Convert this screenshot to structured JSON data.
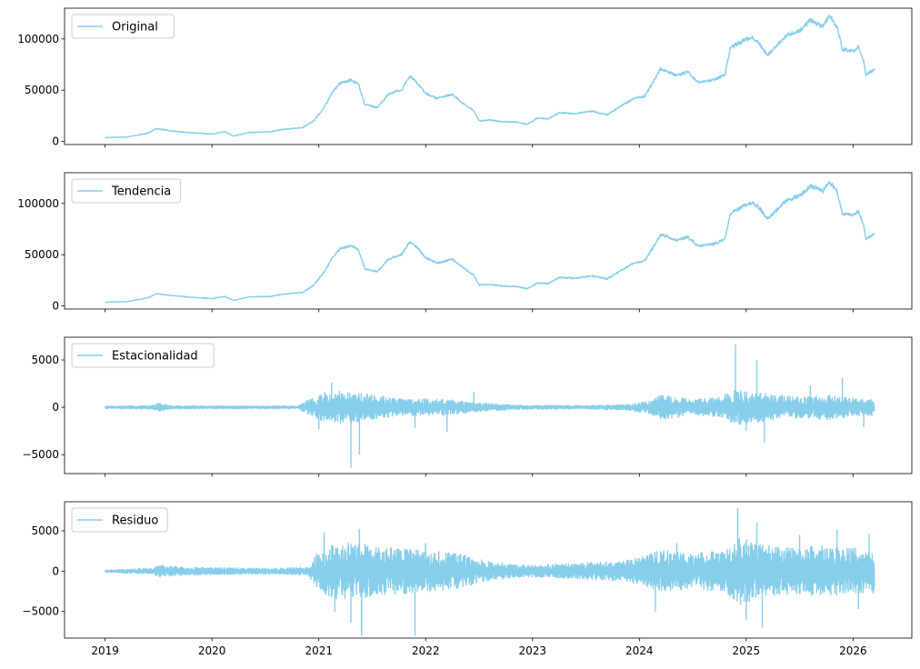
{
  "chart_data": {
    "type": "line",
    "series_color": "#87ceeb",
    "x_range": [
      2018.62,
      2026.55
    ],
    "x_ticks": [
      2019,
      2020,
      2021,
      2022,
      2023,
      2024,
      2025,
      2026
    ],
    "x_tick_labels": [
      "2019",
      "2020",
      "2021",
      "2022",
      "2023",
      "2024",
      "2025",
      "2026"
    ],
    "panels": [
      {
        "key": "original",
        "legend": "Original",
        "kind": "price",
        "ylim": [
          -3000,
          130000
        ],
        "y_ticks": [
          0,
          50000,
          100000
        ],
        "y_tick_labels": [
          "0",
          "50000",
          "100000"
        ],
        "points": [
          [
            2019.0,
            3700
          ],
          [
            2019.2,
            4200
          ],
          [
            2019.4,
            8000
          ],
          [
            2019.48,
            12500
          ],
          [
            2019.6,
            10500
          ],
          [
            2019.8,
            8500
          ],
          [
            2020.0,
            7200
          ],
          [
            2020.12,
            9500
          ],
          [
            2020.2,
            5200
          ],
          [
            2020.35,
            8800
          ],
          [
            2020.55,
            9500
          ],
          [
            2020.65,
            11500
          ],
          [
            2020.85,
            13500
          ],
          [
            2020.95,
            20000
          ],
          [
            2021.05,
            33000
          ],
          [
            2021.12,
            47000
          ],
          [
            2021.2,
            57000
          ],
          [
            2021.3,
            60000
          ],
          [
            2021.37,
            56000
          ],
          [
            2021.43,
            36000
          ],
          [
            2021.55,
            33000
          ],
          [
            2021.65,
            46000
          ],
          [
            2021.78,
            51000
          ],
          [
            2021.85,
            64000
          ],
          [
            2021.92,
            57000
          ],
          [
            2022.0,
            47000
          ],
          [
            2022.1,
            42000
          ],
          [
            2022.25,
            46000
          ],
          [
            2022.35,
            37000
          ],
          [
            2022.45,
            30000
          ],
          [
            2022.5,
            20000
          ],
          [
            2022.6,
            21000
          ],
          [
            2022.7,
            19500
          ],
          [
            2022.85,
            19000
          ],
          [
            2022.95,
            16600
          ],
          [
            2023.05,
            23000
          ],
          [
            2023.15,
            22000
          ],
          [
            2023.25,
            28000
          ],
          [
            2023.4,
            27000
          ],
          [
            2023.55,
            29500
          ],
          [
            2023.7,
            26000
          ],
          [
            2023.82,
            34000
          ],
          [
            2023.95,
            42000
          ],
          [
            2024.05,
            44000
          ],
          [
            2024.15,
            62000
          ],
          [
            2024.2,
            71000
          ],
          [
            2024.35,
            64000
          ],
          [
            2024.45,
            68000
          ],
          [
            2024.55,
            58000
          ],
          [
            2024.7,
            60000
          ],
          [
            2024.8,
            65000
          ],
          [
            2024.85,
            91000
          ],
          [
            2024.95,
            97000
          ],
          [
            2025.05,
            102000
          ],
          [
            2025.12,
            96000
          ],
          [
            2025.2,
            84000
          ],
          [
            2025.28,
            93000
          ],
          [
            2025.38,
            104000
          ],
          [
            2025.5,
            108000
          ],
          [
            2025.6,
            118000
          ],
          [
            2025.72,
            112000
          ],
          [
            2025.78,
            123000
          ],
          [
            2025.85,
            112000
          ],
          [
            2025.9,
            90000
          ],
          [
            2026.0,
            88000
          ],
          [
            2026.05,
            93000
          ],
          [
            2026.1,
            78000
          ],
          [
            2026.12,
            65000
          ],
          [
            2026.2,
            70000
          ]
        ]
      },
      {
        "key": "trend",
        "legend": "Tendencia",
        "kind": "price",
        "ylim": [
          -3000,
          130000
        ],
        "y_ticks": [
          0,
          50000,
          100000
        ],
        "y_tick_labels": [
          "0",
          "50000",
          "100000"
        ],
        "points": [
          [
            2019.0,
            3700
          ],
          [
            2019.2,
            4200
          ],
          [
            2019.4,
            8000
          ],
          [
            2019.48,
            12000
          ],
          [
            2019.6,
            10500
          ],
          [
            2019.8,
            8500
          ],
          [
            2020.0,
            7200
          ],
          [
            2020.12,
            9300
          ],
          [
            2020.2,
            5500
          ],
          [
            2020.35,
            8800
          ],
          [
            2020.55,
            9400
          ],
          [
            2020.65,
            11300
          ],
          [
            2020.85,
            13300
          ],
          [
            2020.95,
            20000
          ],
          [
            2021.05,
            33000
          ],
          [
            2021.12,
            46000
          ],
          [
            2021.2,
            56000
          ],
          [
            2021.3,
            59000
          ],
          [
            2021.37,
            55000
          ],
          [
            2021.43,
            36500
          ],
          [
            2021.55,
            33500
          ],
          [
            2021.65,
            45500
          ],
          [
            2021.78,
            50500
          ],
          [
            2021.85,
            63000
          ],
          [
            2021.92,
            57000
          ],
          [
            2022.0,
            47000
          ],
          [
            2022.1,
            42000
          ],
          [
            2022.25,
            45500
          ],
          [
            2022.35,
            37500
          ],
          [
            2022.45,
            30000
          ],
          [
            2022.5,
            20500
          ],
          [
            2022.6,
            21000
          ],
          [
            2022.7,
            19500
          ],
          [
            2022.85,
            19000
          ],
          [
            2022.95,
            16800
          ],
          [
            2023.05,
            22500
          ],
          [
            2023.15,
            22000
          ],
          [
            2023.25,
            28000
          ],
          [
            2023.4,
            27000
          ],
          [
            2023.55,
            29500
          ],
          [
            2023.7,
            26500
          ],
          [
            2023.82,
            34000
          ],
          [
            2023.95,
            42000
          ],
          [
            2024.05,
            44000
          ],
          [
            2024.15,
            61000
          ],
          [
            2024.2,
            70000
          ],
          [
            2024.35,
            64000
          ],
          [
            2024.45,
            67500
          ],
          [
            2024.55,
            58500
          ],
          [
            2024.7,
            60500
          ],
          [
            2024.8,
            65000
          ],
          [
            2024.85,
            90000
          ],
          [
            2024.95,
            96000
          ],
          [
            2025.05,
            101000
          ],
          [
            2025.12,
            96000
          ],
          [
            2025.2,
            85000
          ],
          [
            2025.28,
            93000
          ],
          [
            2025.38,
            103000
          ],
          [
            2025.5,
            107500
          ],
          [
            2025.6,
            117000
          ],
          [
            2025.72,
            112000
          ],
          [
            2025.78,
            121000
          ],
          [
            2025.85,
            112000
          ],
          [
            2025.9,
            90500
          ],
          [
            2026.0,
            88500
          ],
          [
            2026.05,
            92500
          ],
          [
            2026.1,
            78500
          ],
          [
            2026.12,
            66000
          ],
          [
            2026.2,
            70000
          ]
        ]
      },
      {
        "key": "seasonal",
        "legend": "Estacionalidad",
        "kind": "noise",
        "ylim": [
          -7000,
          7400
        ],
        "y_ticks": [
          -5000,
          0,
          5000
        ],
        "y_tick_labels": [
          "−5000",
          "0",
          "5000"
        ],
        "envelope": [
          [
            2019.0,
            100
          ],
          [
            2019.45,
            150
          ],
          [
            2019.5,
            400
          ],
          [
            2019.6,
            150
          ],
          [
            2020.0,
            120
          ],
          [
            2020.8,
            120
          ],
          [
            2020.95,
            900
          ],
          [
            2021.1,
            1500
          ],
          [
            2021.4,
            1300
          ],
          [
            2021.7,
            800
          ],
          [
            2022.2,
            700
          ],
          [
            2022.5,
            400
          ],
          [
            2022.8,
            200
          ],
          [
            2023.5,
            150
          ],
          [
            2023.9,
            250
          ],
          [
            2024.1,
            600
          ],
          [
            2024.2,
            1100
          ],
          [
            2024.5,
            700
          ],
          [
            2024.75,
            900
          ],
          [
            2024.9,
            1600
          ],
          [
            2025.1,
            1300
          ],
          [
            2025.5,
            900
          ],
          [
            2025.8,
            1100
          ],
          [
            2026.0,
            800
          ],
          [
            2026.2,
            700
          ]
        ],
        "spikes": [
          [
            2021.0,
            -2300
          ],
          [
            2021.12,
            2600
          ],
          [
            2021.3,
            -6400
          ],
          [
            2021.38,
            -5000
          ],
          [
            2021.9,
            -2200
          ],
          [
            2022.2,
            -2600
          ],
          [
            2022.45,
            1600
          ],
          [
            2024.9,
            6700
          ],
          [
            2025.0,
            -2500
          ],
          [
            2025.1,
            5000
          ],
          [
            2025.17,
            -3700
          ],
          [
            2025.6,
            2300
          ],
          [
            2025.9,
            3100
          ],
          [
            2026.1,
            -2100
          ]
        ]
      },
      {
        "key": "residual",
        "legend": "Residuo",
        "kind": "noise",
        "ylim": [
          -8300,
          8600
        ],
        "y_ticks": [
          -5000,
          0,
          5000
        ],
        "y_tick_labels": [
          "−5000",
          "0",
          "5000"
        ],
        "envelope": [
          [
            2019.0,
            120
          ],
          [
            2019.45,
            300
          ],
          [
            2019.5,
            600
          ],
          [
            2019.8,
            400
          ],
          [
            2020.2,
            350
          ],
          [
            2020.5,
            300
          ],
          [
            2020.9,
            400
          ],
          [
            2021.0,
            2200
          ],
          [
            2021.2,
            3000
          ],
          [
            2021.4,
            2800
          ],
          [
            2021.7,
            2400
          ],
          [
            2022.0,
            2200
          ],
          [
            2022.3,
            1800
          ],
          [
            2022.6,
            1000
          ],
          [
            2022.9,
            600
          ],
          [
            2023.2,
            700
          ],
          [
            2023.5,
            900
          ],
          [
            2023.8,
            1000
          ],
          [
            2024.0,
            1400
          ],
          [
            2024.2,
            2200
          ],
          [
            2024.5,
            1800
          ],
          [
            2024.8,
            2200
          ],
          [
            2024.95,
            3500
          ],
          [
            2025.1,
            2800
          ],
          [
            2025.4,
            2400
          ],
          [
            2025.7,
            2600
          ],
          [
            2026.0,
            2400
          ],
          [
            2026.2,
            2300
          ]
        ],
        "spikes": [
          [
            2021.05,
            4800
          ],
          [
            2021.15,
            -5000
          ],
          [
            2021.3,
            -6400
          ],
          [
            2021.38,
            5200
          ],
          [
            2021.4,
            -8000
          ],
          [
            2021.9,
            -8000
          ],
          [
            2022.0,
            3500
          ],
          [
            2024.15,
            -5000
          ],
          [
            2024.35,
            3500
          ],
          [
            2024.92,
            7800
          ],
          [
            2025.0,
            -6000
          ],
          [
            2025.1,
            6000
          ],
          [
            2025.15,
            -7000
          ],
          [
            2025.5,
            4500
          ],
          [
            2025.85,
            5100
          ],
          [
            2026.05,
            -4700
          ],
          [
            2026.15,
            4600
          ]
        ]
      }
    ]
  }
}
